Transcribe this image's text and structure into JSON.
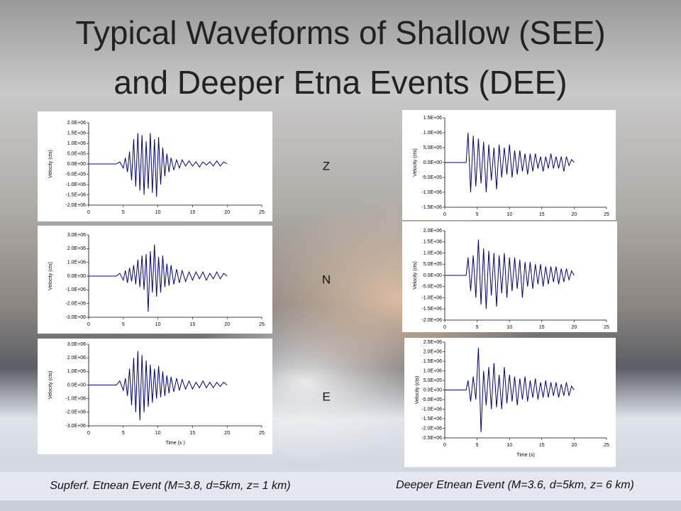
{
  "slide": {
    "title_lines": [
      "Typical Waveforms of Shallow (SEE)",
      "and Deeper Etna Events (DEE)"
    ],
    "components": [
      "Z",
      "N",
      "E"
    ],
    "captions": [
      "Supferf. Etnean Event (M=3.8, d=5km, z= 1 km)",
      "Deeper Etnean Event (M=3.6, d=5km, z= 6 km)"
    ]
  },
  "chart_data": [
    {
      "type": "line",
      "ylabel": "Velocity (cts)",
      "color": "#000080",
      "xlim": [
        0,
        25
      ],
      "xticks": [
        0,
        5,
        10,
        15,
        20,
        25
      ],
      "ylim": [
        -2000000.0,
        2000000.0
      ],
      "yticks": [
        {
          "value": 2000000.0,
          "label": "2.0E+06"
        },
        {
          "value": 1500000.0,
          "label": "1.5E+06"
        },
        {
          "value": 1000000.0,
          "label": "1.0E+06"
        },
        {
          "value": 500000.0,
          "label": "5.0E+05"
        },
        {
          "value": 0,
          "label": "0.0E+00"
        },
        {
          "value": -500000.0,
          "label": "-5.0E+05"
        },
        {
          "value": -1000000.0,
          "label": "-1.0E+06"
        },
        {
          "value": -1500000.0,
          "label": "-1.5E+06"
        },
        {
          "value": -2000000.0,
          "label": "-2.0E+06"
        }
      ],
      "x": [
        0,
        4,
        4.5,
        5,
        5.3,
        5.6,
        5.9,
        6.2,
        6.5,
        6.8,
        7.1,
        7.4,
        7.7,
        8,
        8.3,
        8.6,
        8.9,
        9.2,
        9.5,
        9.8,
        10.1,
        10.4,
        10.7,
        11,
        11.3,
        11.6,
        11.9,
        12.3,
        12.7,
        13.1,
        13.5,
        14,
        14.5,
        15,
        15.5,
        16,
        16.5,
        17,
        17.5,
        18,
        18.5,
        19,
        19.5,
        20
      ],
      "values": [
        0,
        0,
        100000.0,
        -200000.0,
        300000.0,
        -400000.0,
        600000.0,
        -800000.0,
        1200000.0,
        -1100000.0,
        1500000.0,
        -1300000.0,
        1400000.0,
        -1500000.0,
        1100000.0,
        -1200000.0,
        1500000.0,
        -1400000.0,
        1200000.0,
        -1600000.0,
        1300000.0,
        -1000000.0,
        800000.0,
        -600000.0,
        500000.0,
        -400000.0,
        300000.0,
        -300000.0,
        200000.0,
        -200000.0,
        200000.0,
        -100000.0,
        150000.0,
        -100000.0,
        100000.0,
        -150000.0,
        100000.0,
        -50000.0,
        100000.0,
        -100000.0,
        150000.0,
        -100000.0,
        100000.0,
        0
      ]
    },
    {
      "type": "line",
      "ylabel": "Velocity (cts)",
      "color": "#000080",
      "xlim": [
        0,
        25
      ],
      "xticks": [
        0,
        5,
        10,
        15,
        20,
        25
      ],
      "ylim": [
        -3000000.0,
        3000000.0
      ],
      "yticks": [
        {
          "value": 3000000.0,
          "label": "3.0E+06"
        },
        {
          "value": 2000000.0,
          "label": "2.0E+06"
        },
        {
          "value": 1000000.0,
          "label": "1.0E+06"
        },
        {
          "value": 0,
          "label": "0.0E+00"
        },
        {
          "value": -1000000.0,
          "label": "-1.0E+06"
        },
        {
          "value": -2000000.0,
          "label": "-2.0E+06"
        },
        {
          "value": -3000000.0,
          "label": "-3.0E+06"
        }
      ],
      "x": [
        0,
        4,
        4.5,
        5,
        5.3,
        5.6,
        5.9,
        6.2,
        6.5,
        6.8,
        7.1,
        7.4,
        7.7,
        8,
        8.3,
        8.6,
        8.9,
        9.2,
        9.5,
        9.8,
        10.1,
        10.4,
        10.7,
        11,
        11.3,
        11.6,
        11.9,
        12.3,
        12.7,
        13.1,
        13.5,
        14,
        14.5,
        15,
        15.5,
        16,
        16.5,
        17,
        17.5,
        18,
        18.5,
        19,
        19.5,
        20
      ],
      "values": [
        0,
        0,
        200000.0,
        -300000.0,
        400000.0,
        -500000.0,
        600000.0,
        -400000.0,
        800000.0,
        -600000.0,
        1200000.0,
        -800000.0,
        1500000.0,
        -1000000.0,
        1600000.0,
        -2600000.0,
        1800000.0,
        -1200000.0,
        2300000.0,
        -1500000.0,
        1400000.0,
        -1200000.0,
        1500000.0,
        -800000.0,
        900000.0,
        -700000.0,
        800000.0,
        -600000.0,
        500000.0,
        -500000.0,
        400000.0,
        -400000.0,
        300000.0,
        -300000.0,
        300000.0,
        -200000.0,
        300000.0,
        -300000.0,
        200000.0,
        -200000.0,
        300000.0,
        -200000.0,
        200000.0,
        0
      ]
    },
    {
      "type": "line",
      "ylabel": "Velocity (cts)",
      "xlabel": "Time (s )",
      "color": "#000080",
      "xlim": [
        0,
        25
      ],
      "xticks": [
        0,
        5,
        10,
        15,
        20,
        25
      ],
      "ylim": [
        -3000000.0,
        3000000.0
      ],
      "yticks": [
        {
          "value": 3000000.0,
          "label": "3.0E+06"
        },
        {
          "value": 2000000.0,
          "label": "2.0E+06"
        },
        {
          "value": 1000000.0,
          "label": "1.0E+06"
        },
        {
          "value": 0,
          "label": "0.0E+00"
        },
        {
          "value": -1000000.0,
          "label": "-1.0E+06"
        },
        {
          "value": -2000000.0,
          "label": "-2.0E+06"
        },
        {
          "value": -3000000.0,
          "label": "-3.0E+06"
        }
      ],
      "x": [
        0,
        4,
        4.5,
        5,
        5.3,
        5.6,
        5.9,
        6.2,
        6.5,
        6.8,
        7.1,
        7.4,
        7.7,
        8,
        8.3,
        8.6,
        8.9,
        9.2,
        9.5,
        9.8,
        10.1,
        10.4,
        10.7,
        11,
        11.3,
        11.6,
        11.9,
        12.3,
        12.7,
        13.1,
        13.5,
        14,
        14.5,
        15,
        15.5,
        16,
        16.5,
        17,
        17.5,
        18,
        18.5,
        19,
        19.5,
        20
      ],
      "values": [
        0,
        0,
        300000.0,
        -400000.0,
        500000.0,
        -800000.0,
        1200000.0,
        -1500000.0,
        2000000.0,
        -2000000.0,
        2500000.0,
        -2600000.0,
        2200000.0,
        -2000000.0,
        1800000.0,
        -1600000.0,
        1500000.0,
        -1300000.0,
        1200000.0,
        -1000000.0,
        1400000.0,
        -900000.0,
        1000000.0,
        -800000.0,
        700000.0,
        -600000.0,
        600000.0,
        -500000.0,
        500000.0,
        -400000.0,
        400000.0,
        -300000.0,
        300000.0,
        -300000.0,
        200000.0,
        -200000.0,
        300000.0,
        -200000.0,
        200000.0,
        -200000.0,
        200000.0,
        -100000.0,
        200000.0,
        0
      ]
    },
    {
      "type": "line",
      "ylabel": "Velocity (cts)",
      "color": "#000080",
      "xlim": [
        0,
        25
      ],
      "xticks": [
        0,
        5,
        10,
        15,
        20,
        25
      ],
      "ylim": [
        -1500000.0,
        1500000.0
      ],
      "yticks": [
        {
          "value": 1500000.0,
          "label": "1.5E+06"
        },
        {
          "value": 1000000.0,
          "label": "1.0E+06"
        },
        {
          "value": 500000.0,
          "label": "5.0E+05"
        },
        {
          "value": 0,
          "label": "0.0E+00"
        },
        {
          "value": -500000.0,
          "label": "-5.0E+05"
        },
        {
          "value": -1000000.0,
          "label": "-1.0E+06"
        },
        {
          "value": -1500000.0,
          "label": "-1.5E+06"
        }
      ],
      "x": [
        0,
        3.3,
        3.6,
        4,
        4.4,
        4.8,
        5.2,
        5.6,
        6,
        6.4,
        6.8,
        7.2,
        7.6,
        8,
        8.4,
        8.8,
        9.2,
        9.6,
        10,
        10.4,
        10.8,
        11.2,
        11.6,
        12,
        12.4,
        12.8,
        13.2,
        13.6,
        14,
        14.4,
        14.8,
        15.2,
        15.6,
        16,
        16.4,
        16.8,
        17.2,
        17.6,
        18,
        18.4,
        18.8,
        19.2,
        19.6,
        20
      ],
      "values": [
        0,
        0,
        1000000.0,
        -1000000.0,
        900000.0,
        -800000.0,
        800000.0,
        -700000.0,
        700000.0,
        -1000000.0,
        600000.0,
        -600000.0,
        500000.0,
        -900000.0,
        600000.0,
        -500000.0,
        500000.0,
        -400000.0,
        600000.0,
        -500000.0,
        400000.0,
        -400000.0,
        400000.0,
        -300000.0,
        300000.0,
        -400000.0,
        300000.0,
        -300000.0,
        300000.0,
        -200000.0,
        200000.0,
        -300000.0,
        200000.0,
        -200000.0,
        300000.0,
        -200000.0,
        200000.0,
        -200000.0,
        200000.0,
        -300000.0,
        200000.0,
        -100000.0,
        100000.0,
        0
      ]
    },
    {
      "type": "line",
      "ylabel": "Velocity (cts)",
      "color": "#000080",
      "xlim": [
        0,
        25
      ],
      "xticks": [
        0,
        5,
        10,
        15,
        20,
        25
      ],
      "ylim": [
        -2000000.0,
        2000000.0
      ],
      "yticks": [
        {
          "value": 2000000.0,
          "label": "2.0E+06"
        },
        {
          "value": 1500000.0,
          "label": "1.5E+06"
        },
        {
          "value": 1000000.0,
          "label": "1.0E+06"
        },
        {
          "value": 500000.0,
          "label": "5.0E+05"
        },
        {
          "value": 0,
          "label": "0.0E+00"
        },
        {
          "value": -500000.0,
          "label": "-5.0E+05"
        },
        {
          "value": -1000000.0,
          "label": "-1.0E+06"
        },
        {
          "value": -1500000.0,
          "label": "-1.5E+06"
        },
        {
          "value": -2000000.0,
          "label": "-2.0E+06"
        }
      ],
      "x": [
        0,
        3.3,
        3.6,
        4,
        4.4,
        4.8,
        5.2,
        5.6,
        6,
        6.4,
        6.8,
        7.2,
        7.6,
        8,
        8.4,
        8.8,
        9.2,
        9.6,
        10,
        10.4,
        10.8,
        11.2,
        11.6,
        12,
        12.4,
        12.8,
        13.2,
        13.6,
        14,
        14.4,
        14.8,
        15.2,
        15.6,
        16,
        16.4,
        16.8,
        17.2,
        17.6,
        18,
        18.4,
        18.8,
        19.2,
        19.6,
        20
      ],
      "values": [
        0,
        0,
        800000.0,
        -700000.0,
        900000.0,
        -1000000.0,
        1600000.0,
        -1300000.0,
        1200000.0,
        -1500000.0,
        1100000.0,
        -900000.0,
        1000000.0,
        -1400000.0,
        900000.0,
        -800000.0,
        1000000.0,
        -1000000.0,
        800000.0,
        -700000.0,
        800000.0,
        -600000.0,
        700000.0,
        -1000000.0,
        600000.0,
        -500000.0,
        600000.0,
        -600000.0,
        500000.0,
        -400000.0,
        500000.0,
        -500000.0,
        400000.0,
        -400000.0,
        400000.0,
        -300000.0,
        400000.0,
        -400000.0,
        300000.0,
        -300000.0,
        300000.0,
        -200000.0,
        200000.0,
        0
      ]
    },
    {
      "type": "line",
      "ylabel": "Velocity (cts)",
      "xlabel": "Time (s)",
      "color": "#000080",
      "xlim": [
        0,
        25
      ],
      "xticks": [
        0,
        5,
        10,
        15,
        20,
        25
      ],
      "ylim": [
        -2500000.0,
        2500000.0
      ],
      "yticks": [
        {
          "value": 2500000.0,
          "label": "2.5E+06"
        },
        {
          "value": 2000000.0,
          "label": "2.0E+06"
        },
        {
          "value": 1500000.0,
          "label": "1.5E+06"
        },
        {
          "value": 1000000.0,
          "label": "1.0E+06"
        },
        {
          "value": 500000.0,
          "label": "5.0E+05"
        },
        {
          "value": 0,
          "label": "0.0E+00"
        },
        {
          "value": -500000.0,
          "label": "-5.0E+05"
        },
        {
          "value": -1000000.0,
          "label": "-1.0E+06"
        },
        {
          "value": -1500000.0,
          "label": "-1.5E+06"
        },
        {
          "value": -2000000.0,
          "label": "-2.0E+06"
        },
        {
          "value": -2500000.0,
          "label": "-2.5E+06"
        }
      ],
      "x": [
        0,
        3.3,
        3.6,
        4,
        4.4,
        4.8,
        5.2,
        5.6,
        6,
        6.4,
        6.8,
        7.2,
        7.6,
        8,
        8.4,
        8.8,
        9.2,
        9.6,
        10,
        10.4,
        10.8,
        11.2,
        11.6,
        12,
        12.4,
        12.8,
        13.2,
        13.6,
        14,
        14.4,
        14.8,
        15.2,
        15.6,
        16,
        16.4,
        16.8,
        17.2,
        17.6,
        18,
        18.4,
        18.8,
        19.2,
        19.6,
        20
      ],
      "values": [
        0,
        0,
        500000.0,
        -600000.0,
        700000.0,
        -500000.0,
        2200000.0,
        -2200000.0,
        1000000.0,
        -800000.0,
        1200000.0,
        -1000000.0,
        1400000.0,
        -900000.0,
        800000.0,
        -1000000.0,
        1200000.0,
        -700000.0,
        800000.0,
        -600000.0,
        700000.0,
        -800000.0,
        600000.0,
        -500000.0,
        700000.0,
        -600000.0,
        500000.0,
        -400000.0,
        600000.0,
        -500000.0,
        400000.0,
        -400000.0,
        500000.0,
        -400000.0,
        400000.0,
        -300000.0,
        400000.0,
        -400000.0,
        300000.0,
        -300000.0,
        400000.0,
        -300000.0,
        200000.0,
        0
      ]
    }
  ]
}
